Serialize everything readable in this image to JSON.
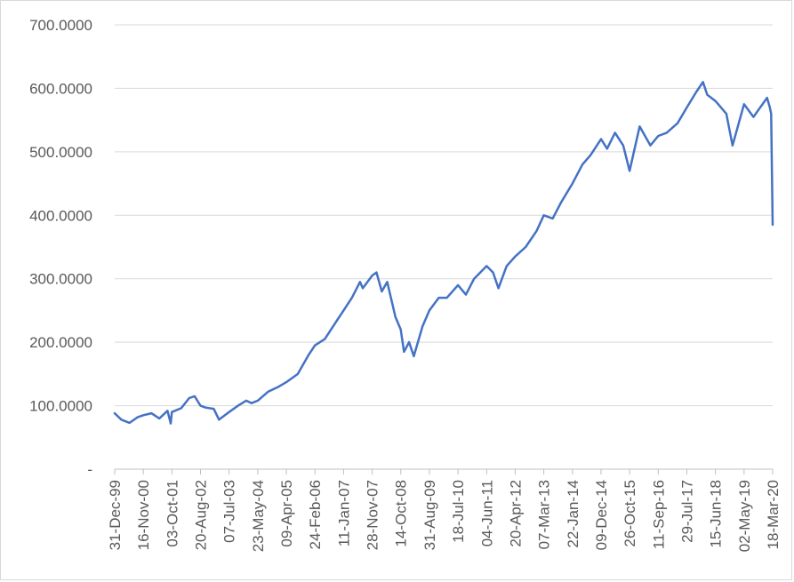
{
  "chart_data": {
    "type": "line",
    "title": "",
    "xlabel": "",
    "ylabel": "",
    "ylim": [
      0,
      700
    ],
    "y_ticks": [
      {
        "value": 0,
        "label": "-"
      },
      {
        "value": 100,
        "label": "100.0000"
      },
      {
        "value": 200,
        "label": "200.0000"
      },
      {
        "value": 300,
        "label": "300.0000"
      },
      {
        "value": 400,
        "label": "400.0000"
      },
      {
        "value": 500,
        "label": "500.0000"
      },
      {
        "value": 600,
        "label": "600.0000"
      },
      {
        "value": 700,
        "label": "700.0000"
      }
    ],
    "x_ticks": [
      "31-Dec-99",
      "16-Nov-00",
      "03-Oct-01",
      "20-Aug-02",
      "07-Jul-03",
      "23-May-04",
      "09-Apr-05",
      "24-Feb-06",
      "11-Jan-07",
      "28-Nov-07",
      "14-Oct-08",
      "31-Aug-09",
      "18-Jul-10",
      "04-Jun-11",
      "20-Apr-12",
      "07-Mar-13",
      "22-Jan-14",
      "09-Dec-14",
      "26-Oct-15",
      "11-Sep-16",
      "29-Jul-17",
      "15-Jun-18",
      "02-May-19",
      "18-Mar-20"
    ],
    "grid": true,
    "legend": "none",
    "color": "#4472c4",
    "series": [
      {
        "x": [
          "31-Dec-99",
          "15-Mar-00",
          "15-Jun-00",
          "15-Sep-00",
          "16-Nov-00",
          "15-Feb-01",
          "15-May-01",
          "15-Aug-01",
          "20-Sep-01",
          "03-Oct-01",
          "15-Jan-02",
          "15-Apr-02",
          "15-Jun-02",
          "20-Aug-02",
          "15-Oct-02",
          "15-Jan-03",
          "15-Mar-03",
          "07-Jul-03",
          "15-Oct-03",
          "15-Jan-04",
          "15-Mar-04",
          "23-May-04",
          "15-Sep-04",
          "15-Jan-05",
          "09-Apr-05",
          "15-Aug-05",
          "15-Dec-05",
          "24-Feb-06",
          "15-Jun-06",
          "15-Sep-06",
          "11-Jan-07",
          "15-Apr-07",
          "15-Jul-07",
          "15-Aug-07",
          "28-Nov-07",
          "15-Jan-08",
          "15-Mar-08",
          "15-May-08",
          "15-Aug-08",
          "14-Oct-08",
          "20-Nov-08",
          "15-Jan-09",
          "09-Mar-09",
          "15-Jun-09",
          "31-Aug-09",
          "15-Dec-09",
          "15-Mar-10",
          "18-Jul-10",
          "15-Oct-10",
          "15-Jan-11",
          "04-Jun-11",
          "15-Aug-11",
          "15-Oct-11",
          "15-Jan-12",
          "20-Apr-12",
          "15-Aug-12",
          "15-Dec-12",
          "07-Mar-13",
          "15-Jun-13",
          "15-Sep-13",
          "22-Jan-14",
          "15-May-14",
          "15-Aug-14",
          "09-Dec-14",
          "15-Feb-15",
          "15-May-15",
          "15-Aug-15",
          "26-Oct-15",
          "15-Feb-16",
          "15-Jun-16",
          "11-Sep-16",
          "15-Dec-16",
          "15-Apr-17",
          "29-Jul-17",
          "15-Nov-17",
          "26-Jan-18",
          "15-Mar-18",
          "15-Jun-18",
          "15-Oct-18",
          "24-Dec-18",
          "02-May-19",
          "15-Aug-19",
          "15-Jan-20",
          "15-Feb-20",
          "01-Mar-20",
          "18-Mar-20"
        ],
        "values": [
          88,
          78,
          73,
          82,
          85,
          88,
          80,
          92,
          72,
          90,
          96,
          112,
          115,
          100,
          97,
          95,
          78,
          90,
          100,
          108,
          104,
          108,
          122,
          130,
          137,
          150,
          180,
          195,
          205,
          225,
          250,
          270,
          295,
          285,
          305,
          310,
          280,
          295,
          240,
          220,
          185,
          200,
          178,
          225,
          250,
          270,
          270,
          290,
          275,
          300,
          320,
          310,
          285,
          320,
          335,
          350,
          375,
          400,
          395,
          420,
          450,
          480,
          495,
          520,
          505,
          530,
          510,
          470,
          540,
          510,
          525,
          530,
          545,
          570,
          595,
          610,
          590,
          580,
          560,
          510,
          575,
          555,
          585,
          570,
          560,
          385
        ]
      }
    ]
  }
}
